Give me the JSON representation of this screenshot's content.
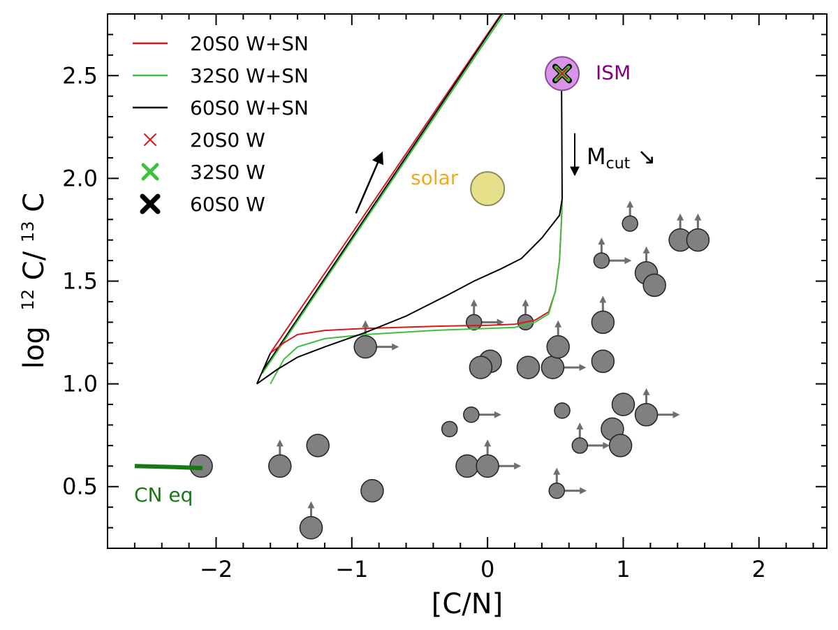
{
  "chart_data": {
    "type": "scatter",
    "xlabel": "[C/N]",
    "ylabel_prefix": "log",
    "ylabel_sup1": "12",
    "ylabel_mid": "C/",
    "ylabel_sup2": "13",
    "ylabel_end": "C",
    "xlim": [
      -2.8,
      2.5
    ],
    "ylim": [
      0.2,
      2.8
    ],
    "xticks": [
      -2,
      -1,
      0,
      1,
      2
    ],
    "xtick_labels": [
      "−2",
      "−1",
      "0",
      "1",
      "2"
    ],
    "yticks": [
      0.5,
      1.0,
      1.5,
      2.0,
      2.5
    ],
    "ytick_labels": [
      "0.5",
      "1.0",
      "1.5",
      "2.0",
      "2.5"
    ],
    "colors": {
      "red": "#d7191c",
      "green": "#3cc13c",
      "black": "#000000",
      "points": "#808080",
      "arrows": "#6e6e6e",
      "solar": "#e6e08a",
      "ism": "#d894e6",
      "ism_text": "#800080",
      "solar_text": "#f2a81d",
      "cn_eq": "#157a15"
    },
    "series": [
      {
        "name": "20S0 W+SN",
        "color": "#d7191c",
        "points": [
          [
            -1.6,
            1.15
          ],
          [
            -1.5,
            1.2
          ],
          [
            -1.4,
            1.24
          ],
          [
            -1.2,
            1.26
          ],
          [
            -0.9,
            1.27
          ],
          [
            -0.4,
            1.28
          ],
          [
            0.0,
            1.285
          ],
          [
            0.2,
            1.29
          ],
          [
            0.35,
            1.31
          ],
          [
            0.45,
            1.35
          ],
          [
            0.5,
            1.45
          ],
          [
            0.53,
            1.6
          ],
          [
            0.545,
            1.8
          ],
          [
            0.55,
            1.9
          ]
        ]
      },
      {
        "name": "32S0 W+SN",
        "color": "#3cc13c",
        "points": [
          [
            -1.6,
            1.0
          ],
          [
            -1.5,
            1.12
          ],
          [
            -1.4,
            1.18
          ],
          [
            -1.2,
            1.22
          ],
          [
            -0.9,
            1.24
          ],
          [
            -0.4,
            1.26
          ],
          [
            0.0,
            1.27
          ],
          [
            0.2,
            1.275
          ],
          [
            0.35,
            1.3
          ],
          [
            0.45,
            1.34
          ],
          [
            0.5,
            1.45
          ],
          [
            0.53,
            1.6
          ],
          [
            0.545,
            1.8
          ],
          [
            0.55,
            1.9
          ]
        ]
      },
      {
        "name": "60S0 W+SN",
        "color": "#000000",
        "points": [
          [
            -1.7,
            1.0
          ],
          [
            -1.55,
            1.07
          ],
          [
            -1.4,
            1.13
          ],
          [
            -1.2,
            1.18
          ],
          [
            -0.9,
            1.25
          ],
          [
            -0.6,
            1.33
          ],
          [
            -0.3,
            1.43
          ],
          [
            -0.1,
            1.5
          ],
          [
            0.1,
            1.56
          ],
          [
            0.25,
            1.61
          ],
          [
            0.4,
            1.71
          ],
          [
            0.53,
            1.82
          ],
          [
            0.55,
            1.9
          ]
        ]
      }
    ],
    "ism_track": {
      "color": "#000000",
      "points": [
        [
          0.55,
          1.9
        ],
        [
          0.545,
          2.48
        ]
      ]
    },
    "upper_lines": [
      {
        "color": "#d7191c",
        "points": [
          [
            -1.6,
            1.15
          ],
          [
            0.1,
            2.8
          ]
        ]
      },
      {
        "color": "#000000",
        "points": [
          [
            -1.65,
            1.07
          ],
          [
            0.105,
            2.8
          ]
        ]
      },
      {
        "color": "#3cc13c",
        "points": [
          [
            -1.66,
            1.05
          ],
          [
            0.12,
            2.8
          ]
        ]
      }
    ],
    "cn_eq_line": {
      "points": [
        [
          -2.6,
          0.6
        ],
        [
          -2.3,
          0.595
        ],
        [
          -2.1,
          0.59
        ]
      ]
    },
    "data_points": [
      {
        "x": -2.11,
        "y": 0.6,
        "size": "large",
        "up": false,
        "right": false
      },
      {
        "x": -1.53,
        "y": 0.6,
        "size": "large",
        "up": true,
        "right": false
      },
      {
        "x": -1.25,
        "y": 0.7,
        "size": "large",
        "up": false,
        "right": false
      },
      {
        "x": -1.3,
        "y": 0.3,
        "size": "large",
        "up": true,
        "right": false
      },
      {
        "x": -0.85,
        "y": 0.48,
        "size": "large",
        "up": false,
        "right": false
      },
      {
        "x": -0.9,
        "y": 1.18,
        "size": "large",
        "up": true,
        "right": true
      },
      {
        "x": -0.28,
        "y": 0.78,
        "size": "small",
        "up": false,
        "right": false
      },
      {
        "x": -0.12,
        "y": 0.85,
        "size": "small",
        "up": false,
        "right": true
      },
      {
        "x": -0.1,
        "y": 1.3,
        "size": "small",
        "up": true,
        "right": true
      },
      {
        "x": -0.15,
        "y": 0.6,
        "size": "large",
        "up": false,
        "right": false
      },
      {
        "x": 0.0,
        "y": 0.6,
        "size": "large",
        "up": true,
        "right": true
      },
      {
        "x": 0.02,
        "y": 1.11,
        "size": "large",
        "up": false,
        "right": false
      },
      {
        "x": -0.05,
        "y": 1.08,
        "size": "large",
        "up": false,
        "right": false
      },
      {
        "x": 0.28,
        "y": 1.3,
        "size": "small",
        "up": true,
        "right": false
      },
      {
        "x": 0.3,
        "y": 1.08,
        "size": "large",
        "up": false,
        "right": false
      },
      {
        "x": 0.48,
        "y": 1.08,
        "size": "large",
        "up": false,
        "right": true
      },
      {
        "x": 0.52,
        "y": 1.18,
        "size": "large",
        "up": true,
        "right": false
      },
      {
        "x": 0.55,
        "y": 0.87,
        "size": "small",
        "up": false,
        "right": false
      },
      {
        "x": 0.51,
        "y": 0.48,
        "size": "small",
        "up": true,
        "right": true
      },
      {
        "x": 0.68,
        "y": 0.7,
        "size": "small",
        "up": true,
        "right": true
      },
      {
        "x": 0.84,
        "y": 1.6,
        "size": "small",
        "up": true,
        "right": true
      },
      {
        "x": 0.85,
        "y": 1.3,
        "size": "large",
        "up": true,
        "right": false
      },
      {
        "x": 0.85,
        "y": 1.11,
        "size": "large",
        "up": false,
        "right": false
      },
      {
        "x": 0.92,
        "y": 0.78,
        "size": "large",
        "up": false,
        "right": false
      },
      {
        "x": 0.98,
        "y": 0.7,
        "size": "large",
        "up": false,
        "right": false
      },
      {
        "x": 1.0,
        "y": 0.9,
        "size": "large",
        "up": false,
        "right": false
      },
      {
        "x": 1.05,
        "y": 1.78,
        "size": "small",
        "up": true,
        "right": false
      },
      {
        "x": 1.17,
        "y": 1.54,
        "size": "large",
        "up": true,
        "right": false
      },
      {
        "x": 1.23,
        "y": 1.48,
        "size": "large",
        "up": false,
        "right": false
      },
      {
        "x": 1.17,
        "y": 0.85,
        "size": "large",
        "up": true,
        "right": true
      },
      {
        "x": 1.42,
        "y": 1.7,
        "size": "large",
        "up": true,
        "right": false
      },
      {
        "x": 1.55,
        "y": 1.7,
        "size": "large",
        "up": true,
        "right": false
      }
    ],
    "solar_point": {
      "x": 0.0,
      "y": 1.95,
      "label": "solar"
    },
    "ism_point": {
      "x": 0.55,
      "y": 2.51,
      "label": "ISM"
    },
    "mcut": {
      "main": "M",
      "sub": "cut",
      "arrow": "↘"
    },
    "cn_eq_label": "CN eq",
    "legend": [
      {
        "label": "20S0 W+SN",
        "kind": "line",
        "color": "#d7191c"
      },
      {
        "label": "32S0 W+SN",
        "kind": "line",
        "color": "#3cc13c"
      },
      {
        "label": "60S0 W+SN",
        "kind": "line",
        "color": "#000000"
      },
      {
        "label": "20S0 W",
        "kind": "x-small",
        "color": "#d7191c"
      },
      {
        "label": "32S0 W",
        "kind": "x-medium",
        "color": "#3cc13c"
      },
      {
        "label": "60S0 W",
        "kind": "x-large",
        "color": "#000000"
      }
    ]
  }
}
